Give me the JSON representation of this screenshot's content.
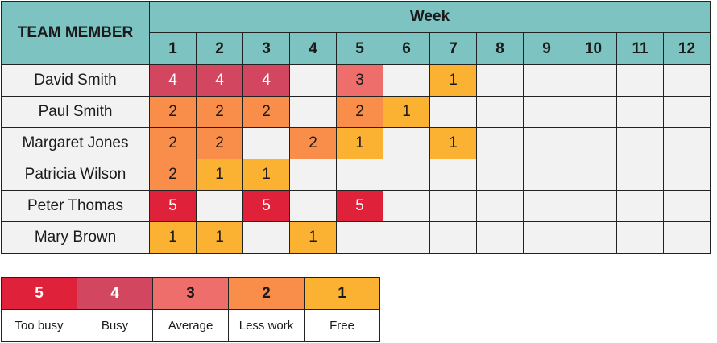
{
  "chart_data": {
    "type": "heatmap",
    "title": "",
    "row_header": "TEAM MEMBER",
    "column_group_label": "Week",
    "columns": [
      "1",
      "2",
      "3",
      "4",
      "5",
      "6",
      "7",
      "8",
      "9",
      "10",
      "11",
      "12"
    ],
    "rows": [
      {
        "name": "David Smith",
        "values": [
          4,
          4,
          4,
          null,
          3,
          null,
          1,
          null,
          null,
          null,
          null,
          null
        ]
      },
      {
        "name": "Paul Smith",
        "values": [
          2,
          2,
          2,
          null,
          2,
          1,
          null,
          null,
          null,
          null,
          null,
          null
        ]
      },
      {
        "name": "Margaret Jones",
        "values": [
          2,
          2,
          null,
          2,
          1,
          null,
          1,
          null,
          null,
          null,
          null,
          null
        ]
      },
      {
        "name": "Patricia Wilson",
        "values": [
          2,
          1,
          1,
          null,
          null,
          null,
          null,
          null,
          null,
          null,
          null,
          null
        ]
      },
      {
        "name": "Peter Thomas",
        "values": [
          5,
          null,
          5,
          null,
          5,
          null,
          null,
          null,
          null,
          null,
          null,
          null
        ]
      },
      {
        "name": "Mary Brown",
        "values": [
          1,
          1,
          null,
          1,
          null,
          null,
          null,
          null,
          null,
          null,
          null,
          null
        ]
      }
    ],
    "colors": {
      "5": "#e0213a",
      "4": "#d2465f",
      "3": "#ee6e6c",
      "2": "#f98e4a",
      "1": "#fbb233",
      "header": "#7cc3c1",
      "empty": "#f2f2f2"
    },
    "legend": [
      {
        "value": "5",
        "label": "Too busy"
      },
      {
        "value": "4",
        "label": "Busy"
      },
      {
        "value": "3",
        "label": "Average"
      },
      {
        "value": "2",
        "label": "Less work"
      },
      {
        "value": "1",
        "label": "Free"
      }
    ]
  }
}
